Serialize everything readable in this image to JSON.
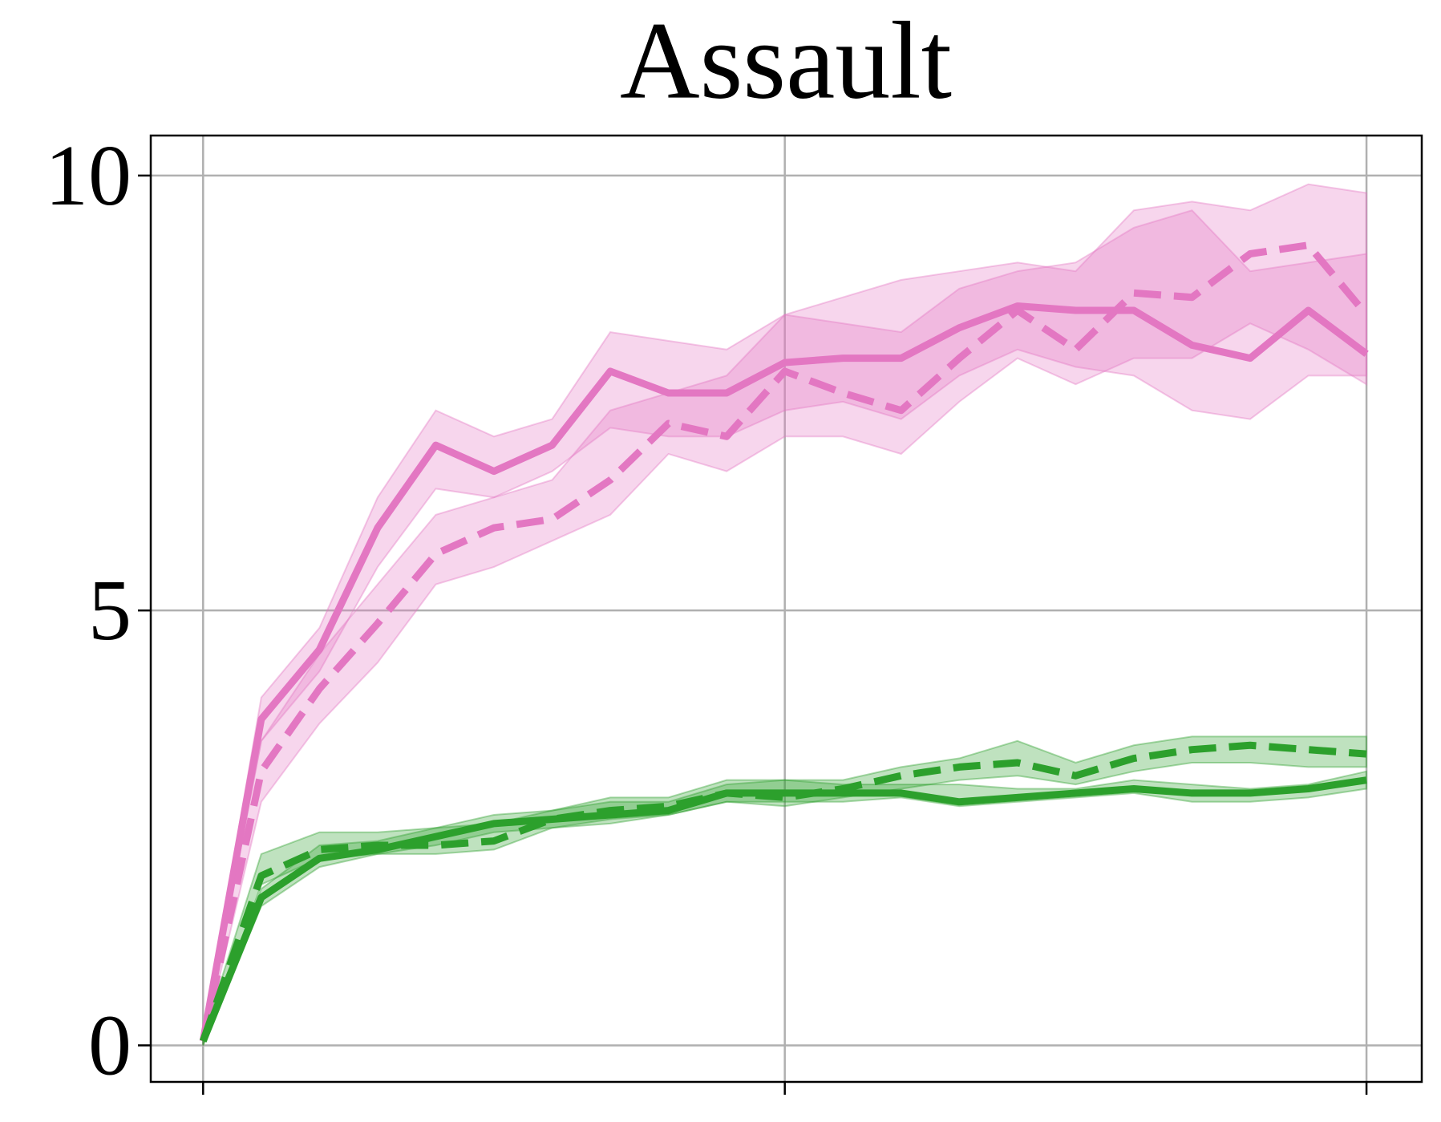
{
  "chart_data": {
    "type": "line",
    "title": "Assault",
    "x": [
      0,
      1,
      2,
      3,
      4,
      5,
      6,
      7,
      8,
      9,
      10,
      11,
      12,
      13,
      14,
      15,
      16,
      17,
      18,
      19,
      20
    ],
    "xlim": [
      -0.9,
      20.95
    ],
    "xticks": [
      0,
      10,
      20
    ],
    "ylim": [
      -0.42,
      10.46
    ],
    "yticks": [
      0,
      5,
      10
    ],
    "grid": true,
    "series": [
      {
        "color": "#e377c2",
        "dash": false,
        "values": [
          0.05,
          3.75,
          4.55,
          5.95,
          6.9,
          6.6,
          6.9,
          7.75,
          7.5,
          7.5,
          7.85,
          7.9,
          7.9,
          8.25,
          8.5,
          8.45,
          8.45,
          8.05,
          7.9,
          8.45,
          7.95
        ],
        "lower": [
          0,
          3.5,
          4.3,
          5.5,
          6.4,
          6.3,
          6.6,
          7.1,
          7.0,
          7.0,
          7.3,
          7.4,
          7.2,
          7.7,
          8.0,
          7.8,
          7.7,
          7.3,
          7.2,
          7.7,
          7.7
        ],
        "upper": [
          0.1,
          4.0,
          4.8,
          6.3,
          7.3,
          7.0,
          7.2,
          8.2,
          8.1,
          8.0,
          8.4,
          8.3,
          8.2,
          8.7,
          8.9,
          9.0,
          9.4,
          9.6,
          8.9,
          9.0,
          9.1
        ]
      },
      {
        "color": "#e377c2",
        "dash": true,
        "values": [
          0.05,
          3.15,
          4.1,
          4.85,
          5.65,
          5.95,
          6.05,
          6.5,
          7.15,
          7.0,
          7.75,
          7.5,
          7.3,
          7.9,
          8.45,
          8.0,
          8.65,
          8.6,
          9.1,
          9.2,
          8.4
        ],
        "lower": [
          0,
          2.8,
          3.7,
          4.4,
          5.3,
          5.5,
          5.8,
          6.1,
          6.8,
          6.6,
          7.0,
          7.0,
          6.8,
          7.4,
          7.9,
          7.6,
          7.9,
          7.9,
          8.3,
          8.0,
          7.6
        ],
        "upper": [
          0.1,
          3.5,
          4.5,
          5.3,
          6.1,
          6.3,
          6.5,
          7.3,
          7.5,
          7.7,
          8.4,
          8.6,
          8.8,
          8.9,
          9.0,
          8.9,
          9.6,
          9.7,
          9.6,
          9.9,
          9.8
        ]
      },
      {
        "color": "#2ca02c",
        "dash": false,
        "values": [
          0.05,
          1.7,
          2.15,
          2.25,
          2.4,
          2.55,
          2.6,
          2.65,
          2.7,
          2.9,
          2.9,
          2.9,
          2.9,
          2.8,
          2.85,
          2.9,
          2.95,
          2.9,
          2.9,
          2.95,
          3.05
        ],
        "lower": [
          0,
          1.6,
          2.05,
          2.2,
          2.3,
          2.45,
          2.5,
          2.55,
          2.65,
          2.8,
          2.8,
          2.8,
          2.85,
          2.75,
          2.8,
          2.85,
          2.9,
          2.8,
          2.8,
          2.85,
          2.95
        ],
        "upper": [
          0.1,
          1.8,
          2.3,
          2.35,
          2.5,
          2.65,
          2.7,
          2.8,
          2.8,
          3.0,
          3.05,
          3.0,
          3.0,
          3.0,
          2.95,
          2.95,
          3.05,
          3.0,
          2.95,
          3.0,
          3.15
        ]
      },
      {
        "color": "#2ca02c",
        "dash": true,
        "values": [
          0.05,
          1.95,
          2.25,
          2.3,
          2.3,
          2.35,
          2.6,
          2.7,
          2.75,
          2.9,
          2.85,
          2.95,
          3.1,
          3.2,
          3.25,
          3.1,
          3.3,
          3.4,
          3.45,
          3.4,
          3.35
        ],
        "lower": [
          0,
          1.85,
          2.15,
          2.2,
          2.2,
          2.25,
          2.5,
          2.6,
          2.65,
          2.8,
          2.75,
          2.85,
          2.95,
          3.05,
          3.1,
          3.0,
          3.15,
          3.25,
          3.25,
          3.2,
          3.2
        ],
        "upper": [
          0.1,
          2.2,
          2.45,
          2.45,
          2.5,
          2.55,
          2.7,
          2.85,
          2.85,
          3.05,
          3.05,
          3.05,
          3.2,
          3.3,
          3.5,
          3.25,
          3.45,
          3.55,
          3.55,
          3.55,
          3.55
        ]
      }
    ]
  }
}
